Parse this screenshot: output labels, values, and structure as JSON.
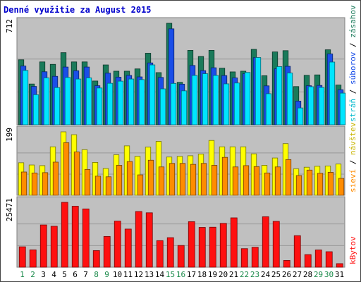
{
  "title": "Denné využitie za August 2015",
  "chart_data": {
    "type": "bar",
    "title": "Denné využitie za August 2015",
    "categories": [
      "1",
      "2",
      "3",
      "4",
      "5",
      "6",
      "7",
      "8",
      "9",
      "10",
      "11",
      "12",
      "13",
      "14",
      "15",
      "16",
      "17",
      "18",
      "19",
      "20",
      "21",
      "22",
      "23",
      "24",
      "25",
      "26",
      "27",
      "28",
      "29",
      "30",
      "31"
    ],
    "weekend_days": [
      "1",
      "2",
      "8",
      "9",
      "15",
      "16",
      "22",
      "23",
      "29",
      "30"
    ],
    "panels": [
      {
        "id": "top",
        "max_label": "712",
        "ymax": 712,
        "side_labels": [
          "stráň",
          "súborov",
          "zásahov"
        ],
        "series": [
          {
            "name": "zásahov",
            "color": "#1a7a5a",
            "values": [
              456,
              286,
              441,
              424,
              506,
              441,
              441,
              307,
              420,
              376,
              376,
              392,
              502,
              366,
              712,
              298,
              522,
              479,
              522,
              397,
              371,
              376,
              529,
              344,
              511,
              520,
              268,
              347,
              350,
              526,
              279
            ]
          },
          {
            "name": "súborov",
            "color": "#1a4ee8",
            "values": [
              412,
              269,
              372,
              340,
              405,
              379,
              405,
              274,
              362,
              334,
              346,
              336,
              434,
              332,
              673,
              285,
              416,
              380,
              400,
              345,
              329,
              358,
              471,
              273,
              393,
              410,
              166,
              274,
              276,
              497,
              246
            ]
          },
          {
            "name": "stráň",
            "color": "#00e5ff",
            "values": [
              381,
              211,
              329,
              261,
              332,
              321,
              329,
              258,
              291,
              306,
              321,
              317,
              420,
              252,
              290,
              238,
              346,
              358,
              346,
              287,
              293,
              367,
              472,
              218,
              408,
              363,
              118,
              267,
              262,
              440,
              222
            ]
          }
        ]
      },
      {
        "id": "mid",
        "max_label": "199",
        "ymax": 199,
        "side_labels": [
          "sieví",
          "návštev"
        ],
        "series": [
          {
            "name": "návštev",
            "color": "#ffff00",
            "values": [
              102,
              95,
              93,
              152,
              199,
              190,
              143,
              103,
              84,
              127,
              155,
              122,
              151,
              169,
              120,
              122,
              124,
              129,
              172,
              152,
              152,
              152,
              130,
              94,
              117,
              162,
              83,
              88,
              91,
              92,
              98
            ]
          },
          {
            "name": "sieví",
            "color": "#ff8c00",
            "values": [
              73,
              70,
              71,
              104,
              165,
              136,
              81,
              60,
              58,
              94,
              106,
              64,
              110,
              89,
              100,
              100,
              97,
              100,
              94,
              119,
              89,
              93,
              90,
              70,
              89,
              112,
              62,
              79,
              69,
              72,
              53
            ]
          }
        ]
      },
      {
        "id": "bot",
        "max_label": "25471",
        "ymax": 25471,
        "side_labels": [
          "kBytov"
        ],
        "series": [
          {
            "name": "kBytov",
            "color": "#ff1010",
            "values": [
              8010,
              6822,
              16590,
              16081,
              25471,
              23953,
              22894,
              6516,
              12080,
              18104,
              14976,
              21880,
              21370,
              10424,
              11608,
              8532,
              17880,
              15637,
              15714,
              17218,
              19383,
              7278,
              7829,
              19810,
              18000,
              2650,
              12380,
              4950,
              6780,
              6086,
              1400
            ]
          }
        ]
      }
    ]
  }
}
